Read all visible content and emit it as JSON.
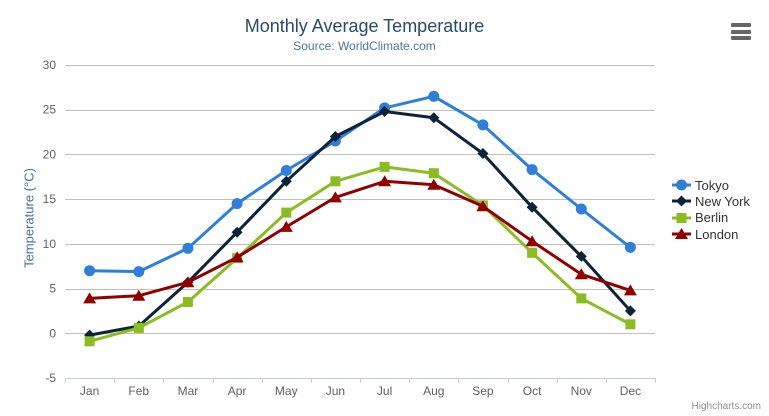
{
  "chart_data": {
    "type": "line",
    "title": "Monthly Average Temperature",
    "subtitle": "Source: WorldClimate.com",
    "xlabel": "",
    "ylabel": "Temperature (°C)",
    "categories": [
      "Jan",
      "Feb",
      "Mar",
      "Apr",
      "May",
      "Jun",
      "Jul",
      "Aug",
      "Sep",
      "Oct",
      "Nov",
      "Dec"
    ],
    "ylim": [
      -5,
      30
    ],
    "yticks": [
      30,
      25,
      20,
      15,
      10,
      5,
      0,
      -5
    ],
    "grid": true,
    "legend_position": "right",
    "series": [
      {
        "name": "Tokyo",
        "color": "#2f7ed8",
        "marker": "circle",
        "values": [
          7.0,
          6.9,
          9.5,
          14.5,
          18.2,
          21.5,
          25.2,
          26.5,
          23.3,
          18.3,
          13.9,
          9.6
        ]
      },
      {
        "name": "New York",
        "color": "#0d233a",
        "marker": "diamond",
        "values": [
          -0.2,
          0.8,
          5.7,
          11.3,
          17.0,
          22.0,
          24.8,
          24.1,
          20.1,
          14.1,
          8.6,
          2.5
        ]
      },
      {
        "name": "Berlin",
        "color": "#8bbc21",
        "marker": "square",
        "values": [
          -0.9,
          0.6,
          3.5,
          8.4,
          13.5,
          17.0,
          18.6,
          17.9,
          14.3,
          9.0,
          3.9,
          1.0
        ]
      },
      {
        "name": "London",
        "color": "#910000",
        "marker": "triangle",
        "values": [
          3.9,
          4.2,
          5.7,
          8.5,
          11.9,
          15.2,
          17.0,
          16.6,
          14.2,
          10.3,
          6.6,
          4.8
        ]
      }
    ],
    "credits": "Highcharts.com"
  },
  "colors": {
    "background": "#ffffff",
    "title": "#274b6d",
    "subtitle": "#4d759e",
    "axis_title": "#4572a7",
    "tick_label": "#606060",
    "gridline": "#c0c0c0",
    "axis_line": "#c0d0e0",
    "legend_text": "#333333",
    "credits": "#909090",
    "menu_icon": "#666666"
  },
  "icons": {
    "export_menu": "hamburger-icon"
  }
}
